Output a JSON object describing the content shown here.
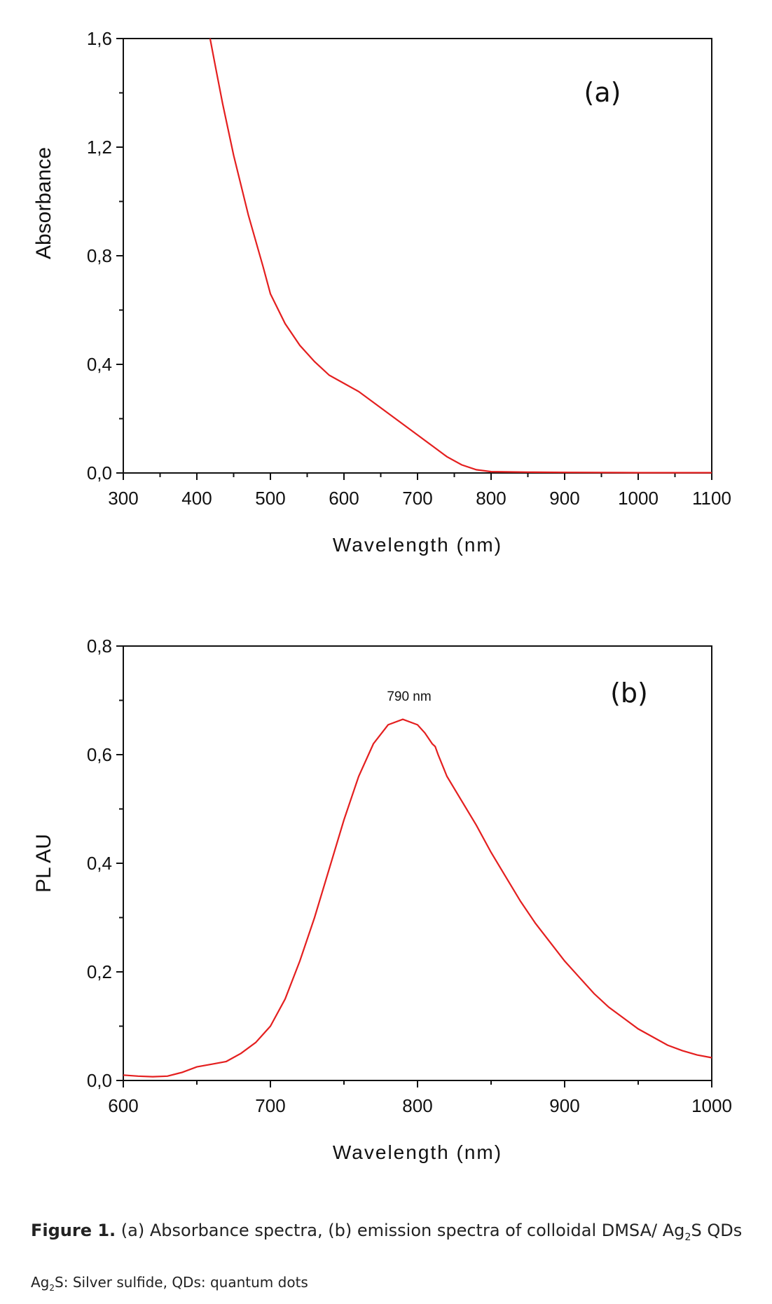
{
  "chart_data": [
    {
      "type": "line",
      "panel": "(a)",
      "xlabel": "Wavelength (nm)",
      "ylabel": "Absorbance",
      "xlim": [
        300,
        1100
      ],
      "ylim": [
        0.0,
        1.6
      ],
      "xticks": [
        300,
        400,
        500,
        600,
        700,
        800,
        900,
        1000,
        1100
      ],
      "xtick_labels": [
        "300",
        "400",
        "500",
        "600",
        "700",
        "800",
        "900",
        "1000",
        "1100"
      ],
      "yticks": [
        0.0,
        0.4,
        0.8,
        1.2,
        1.6
      ],
      "ytick_labels": [
        "0,0",
        "0,4",
        "0,8",
        "1,2",
        "1,6"
      ],
      "color": "#e41f1f",
      "series": [
        {
          "name": "Absorbance",
          "x": [
            418,
            425,
            435,
            450,
            470,
            490,
            500,
            520,
            540,
            560,
            580,
            600,
            620,
            640,
            660,
            680,
            700,
            720,
            740,
            760,
            780,
            800,
            850,
            900,
            1000,
            1100
          ],
          "y": [
            1.6,
            1.5,
            1.36,
            1.17,
            0.95,
            0.76,
            0.66,
            0.55,
            0.47,
            0.41,
            0.36,
            0.33,
            0.3,
            0.26,
            0.22,
            0.18,
            0.14,
            0.1,
            0.06,
            0.03,
            0.012,
            0.005,
            0.003,
            0.002,
            0.001,
            0.001
          ]
        }
      ],
      "grid": false
    },
    {
      "type": "line",
      "panel": "(b)",
      "xlabel": "Wavelength (nm)",
      "ylabel": "PL AU",
      "xlim": [
        600,
        1000
      ],
      "ylim": [
        0.0,
        0.8
      ],
      "xticks": [
        600,
        700,
        800,
        900,
        1000
      ],
      "xtick_labels": [
        "600",
        "700",
        "800",
        "900",
        "1000"
      ],
      "yticks": [
        0.0,
        0.2,
        0.4,
        0.6,
        0.8
      ],
      "ytick_labels": [
        "0,0",
        "0,2",
        "0,4",
        "0,6",
        "0,8"
      ],
      "color": "#e41f1f",
      "annotation": "790 nm",
      "series": [
        {
          "name": "Emission",
          "x": [
            600,
            610,
            620,
            630,
            640,
            650,
            660,
            670,
            680,
            690,
            700,
            710,
            720,
            730,
            740,
            750,
            760,
            770,
            780,
            790,
            800,
            805,
            810,
            812,
            814,
            820,
            830,
            840,
            850,
            860,
            870,
            880,
            890,
            900,
            910,
            920,
            930,
            940,
            950,
            960,
            970,
            980,
            990,
            1000
          ],
          "y": [
            0.01,
            0.008,
            0.007,
            0.008,
            0.015,
            0.025,
            0.03,
            0.035,
            0.05,
            0.07,
            0.1,
            0.15,
            0.22,
            0.3,
            0.39,
            0.48,
            0.56,
            0.62,
            0.655,
            0.665,
            0.655,
            0.64,
            0.62,
            0.615,
            0.6,
            0.56,
            0.515,
            0.47,
            0.42,
            0.375,
            0.33,
            0.29,
            0.255,
            0.22,
            0.19,
            0.16,
            0.135,
            0.115,
            0.095,
            0.08,
            0.065,
            0.055,
            0.047,
            0.042
          ]
        }
      ],
      "grid": false
    }
  ],
  "panels": {
    "a": {
      "label": "(a)"
    },
    "b": {
      "label": "(b)"
    }
  },
  "caption": {
    "prefix": "Figure 1.",
    "text_part1": " (a) Absorbance spectra, (b) emission spectra of colloidal DMSA/ Ag",
    "sub": "2",
    "text_part2": "S QDs"
  },
  "footnote": {
    "part1": "Ag",
    "sub": "2",
    "part2": "S: Silver sulfide, QDs: quantum dots"
  }
}
